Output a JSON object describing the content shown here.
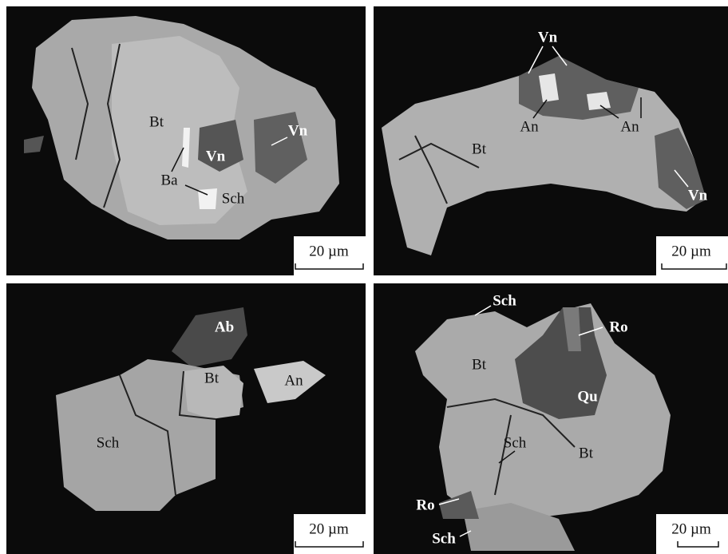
{
  "panels": [
    {
      "labels": [
        "Bt",
        "Vn",
        "Vn",
        "Ba",
        "Sch"
      ],
      "scale_bar": "20 µm"
    },
    {
      "labels": [
        "Vn",
        "An",
        "An",
        "Bt",
        "Vn"
      ],
      "scale_bar": "20 µm"
    },
    {
      "labels": [
        "Ab",
        "Bt",
        "An",
        "Sch"
      ],
      "scale_bar": "20 µm"
    },
    {
      "labels": [
        "Sch",
        "Ro",
        "Bt",
        "Qu",
        "Sch",
        "Bt",
        "Ro",
        "Sch"
      ],
      "scale_bar": "20 µm"
    }
  ]
}
